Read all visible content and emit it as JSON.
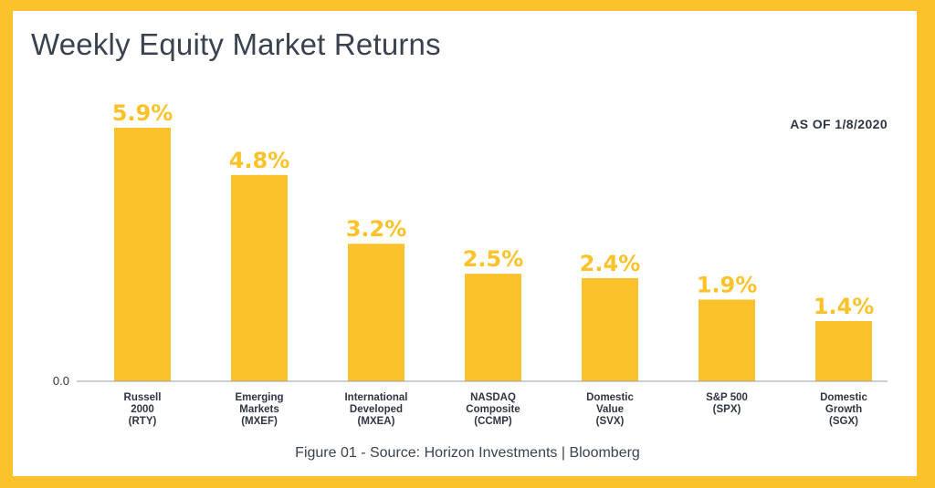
{
  "title": "Weekly Equity Market Returns",
  "as_of": "AS OF 1/8/2020",
  "caption": "Figure 01 - Source: Horizon Investments | Bloomberg",
  "colors": {
    "bar": "#fbc22c",
    "frame": "#fbc22c",
    "text": "#3a4250"
  },
  "chart_data": {
    "type": "bar",
    "title": "Weekly Equity Market Returns",
    "categories": [
      [
        "Russell",
        "2000",
        "(RTY)"
      ],
      [
        "Emerging",
        "Markets",
        "(MXEF)"
      ],
      [
        "International",
        "Developed",
        "(MXEA)"
      ],
      [
        "NASDAQ",
        "Composite",
        "(CCMP)"
      ],
      [
        "Domestic",
        "Value",
        "(SVX)"
      ],
      [
        "S&P 500",
        "(SPX)"
      ],
      [
        "Domestic",
        "Growth",
        "(SGX)"
      ]
    ],
    "values": [
      5.9,
      4.8,
      3.2,
      2.5,
      2.4,
      1.9,
      1.4
    ],
    "value_labels": [
      "5.9%",
      "4.8%",
      "3.2%",
      "2.5%",
      "2.4%",
      "1.9%",
      "1.4%"
    ],
    "y_tick_label": "0.0",
    "ylim": [
      0,
      5.9
    ],
    "grid": false,
    "legend": "none"
  }
}
